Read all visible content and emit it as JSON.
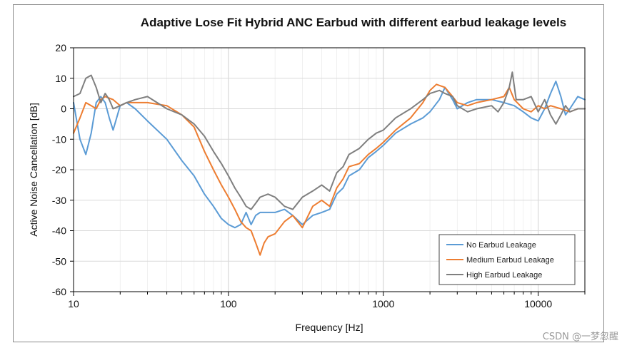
{
  "chart_data": {
    "type": "line",
    "title": "Adaptive Lose Fit Hybrid ANC Earbud with different earbud leakage levels",
    "xlabel": "Frequency  [Hz]",
    "ylabel": "Active Noise Cancellation  [dB]",
    "xscale": "log",
    "xlim": [
      10,
      20000
    ],
    "ylim": [
      -60,
      20
    ],
    "x_ticks": [
      10,
      100,
      1000,
      10000
    ],
    "x_tick_labels": [
      "10",
      "100",
      "1000",
      "10000"
    ],
    "y_ticks": [
      20,
      10,
      0,
      -10,
      -20,
      -30,
      -40,
      -50,
      -60
    ],
    "y_tick_labels": [
      "20",
      "10",
      "0",
      "-10",
      "-20",
      "-30",
      "-40",
      "-50",
      "-60"
    ],
    "grid": true,
    "legend_position": "bottom-right",
    "series": [
      {
        "name": "No Earbud Leakage",
        "color": "#5b9bd5",
        "points": [
          [
            10,
            2
          ],
          [
            11,
            -10
          ],
          [
            12,
            -15
          ],
          [
            13,
            -8
          ],
          [
            14,
            2
          ],
          [
            15,
            4
          ],
          [
            16,
            2
          ],
          [
            17,
            -3
          ],
          [
            18,
            -7
          ],
          [
            20,
            1
          ],
          [
            22,
            2
          ],
          [
            25,
            0
          ],
          [
            30,
            -4
          ],
          [
            40,
            -10
          ],
          [
            50,
            -17
          ],
          [
            60,
            -22
          ],
          [
            70,
            -28
          ],
          [
            80,
            -32
          ],
          [
            90,
            -36
          ],
          [
            100,
            -38
          ],
          [
            110,
            -39
          ],
          [
            120,
            -38
          ],
          [
            130,
            -34
          ],
          [
            140,
            -38
          ],
          [
            150,
            -35
          ],
          [
            160,
            -34
          ],
          [
            180,
            -34
          ],
          [
            200,
            -34
          ],
          [
            230,
            -33
          ],
          [
            260,
            -35
          ],
          [
            300,
            -38
          ],
          [
            350,
            -35
          ],
          [
            400,
            -34
          ],
          [
            450,
            -33
          ],
          [
            500,
            -28
          ],
          [
            550,
            -26
          ],
          [
            600,
            -22
          ],
          [
            700,
            -20
          ],
          [
            800,
            -16
          ],
          [
            900,
            -14
          ],
          [
            1000,
            -12
          ],
          [
            1200,
            -8
          ],
          [
            1500,
            -5
          ],
          [
            1800,
            -3
          ],
          [
            2000,
            -1
          ],
          [
            2300,
            3
          ],
          [
            2500,
            7
          ],
          [
            2800,
            3
          ],
          [
            3000,
            0
          ],
          [
            3500,
            2
          ],
          [
            4000,
            3
          ],
          [
            5000,
            3
          ],
          [
            6000,
            2
          ],
          [
            7000,
            1
          ],
          [
            8000,
            -1
          ],
          [
            9000,
            -3
          ],
          [
            10000,
            -4
          ],
          [
            11000,
            0
          ],
          [
            12000,
            5
          ],
          [
            13000,
            9
          ],
          [
            14000,
            4
          ],
          [
            15000,
            -2
          ],
          [
            16000,
            0
          ],
          [
            18000,
            4
          ],
          [
            20000,
            3
          ]
        ]
      },
      {
        "name": "Medium Earbud Leakage",
        "color": "#ed7d31",
        "points": [
          [
            10,
            -8
          ],
          [
            11,
            -3
          ],
          [
            12,
            2
          ],
          [
            13,
            1
          ],
          [
            14,
            0
          ],
          [
            15,
            3
          ],
          [
            16,
            4
          ],
          [
            18,
            3
          ],
          [
            20,
            1
          ],
          [
            22,
            2
          ],
          [
            25,
            2
          ],
          [
            30,
            2
          ],
          [
            40,
            1
          ],
          [
            50,
            -2
          ],
          [
            60,
            -6
          ],
          [
            70,
            -14
          ],
          [
            80,
            -20
          ],
          [
            90,
            -25
          ],
          [
            100,
            -29
          ],
          [
            110,
            -33
          ],
          [
            120,
            -37
          ],
          [
            130,
            -39
          ],
          [
            140,
            -40
          ],
          [
            150,
            -44
          ],
          [
            160,
            -48
          ],
          [
            170,
            -44
          ],
          [
            180,
            -42
          ],
          [
            200,
            -41
          ],
          [
            230,
            -37
          ],
          [
            260,
            -35
          ],
          [
            300,
            -39
          ],
          [
            350,
            -32
          ],
          [
            400,
            -30
          ],
          [
            450,
            -32
          ],
          [
            500,
            -26
          ],
          [
            550,
            -23
          ],
          [
            600,
            -19
          ],
          [
            700,
            -18
          ],
          [
            800,
            -15
          ],
          [
            900,
            -13
          ],
          [
            1000,
            -11
          ],
          [
            1200,
            -7
          ],
          [
            1500,
            -3
          ],
          [
            1800,
            2
          ],
          [
            2000,
            6
          ],
          [
            2200,
            8
          ],
          [
            2500,
            7
          ],
          [
            2800,
            4
          ],
          [
            3000,
            2
          ],
          [
            3500,
            1
          ],
          [
            4000,
            2
          ],
          [
            5000,
            3
          ],
          [
            6000,
            4
          ],
          [
            6500,
            7
          ],
          [
            7000,
            3
          ],
          [
            8000,
            0
          ],
          [
            9000,
            -1
          ],
          [
            10000,
            1
          ],
          [
            11000,
            0
          ],
          [
            12000,
            1
          ],
          [
            14000,
            0
          ],
          [
            16000,
            -1
          ],
          [
            18000,
            0
          ],
          [
            20000,
            0
          ]
        ]
      },
      {
        "name": "High Earbud Leakage",
        "color": "#7f7f7f",
        "points": [
          [
            10,
            4
          ],
          [
            11,
            5
          ],
          [
            12,
            10
          ],
          [
            13,
            11
          ],
          [
            14,
            7
          ],
          [
            15,
            2
          ],
          [
            16,
            5
          ],
          [
            17,
            3
          ],
          [
            18,
            0
          ],
          [
            20,
            1
          ],
          [
            22,
            2
          ],
          [
            25,
            3
          ],
          [
            30,
            4
          ],
          [
            40,
            0
          ],
          [
            50,
            -2
          ],
          [
            60,
            -5
          ],
          [
            70,
            -9
          ],
          [
            80,
            -14
          ],
          [
            90,
            -18
          ],
          [
            100,
            -22
          ],
          [
            110,
            -26
          ],
          [
            120,
            -29
          ],
          [
            130,
            -32
          ],
          [
            140,
            -33
          ],
          [
            150,
            -31
          ],
          [
            160,
            -29
          ],
          [
            180,
            -28
          ],
          [
            200,
            -29
          ],
          [
            230,
            -32
          ],
          [
            260,
            -33
          ],
          [
            300,
            -29
          ],
          [
            350,
            -27
          ],
          [
            400,
            -25
          ],
          [
            450,
            -27
          ],
          [
            500,
            -21
          ],
          [
            550,
            -19
          ],
          [
            600,
            -15
          ],
          [
            700,
            -13
          ],
          [
            800,
            -10
          ],
          [
            900,
            -8
          ],
          [
            1000,
            -7
          ],
          [
            1200,
            -3
          ],
          [
            1500,
            0
          ],
          [
            1800,
            3
          ],
          [
            2000,
            5
          ],
          [
            2300,
            6
          ],
          [
            2500,
            5
          ],
          [
            2800,
            4
          ],
          [
            3000,
            1
          ],
          [
            3500,
            -1
          ],
          [
            4000,
            0
          ],
          [
            5000,
            1
          ],
          [
            5500,
            -1
          ],
          [
            6000,
            2
          ],
          [
            6500,
            7
          ],
          [
            6800,
            12
          ],
          [
            7200,
            3
          ],
          [
            8000,
            3
          ],
          [
            9000,
            4
          ],
          [
            10000,
            -1
          ],
          [
            11000,
            3
          ],
          [
            12000,
            -2
          ],
          [
            13000,
            -5
          ],
          [
            14000,
            -2
          ],
          [
            15000,
            1
          ],
          [
            16000,
            -1
          ],
          [
            18000,
            0
          ],
          [
            20000,
            0
          ]
        ]
      }
    ]
  },
  "watermark": "CSDN @一梦忽醒"
}
